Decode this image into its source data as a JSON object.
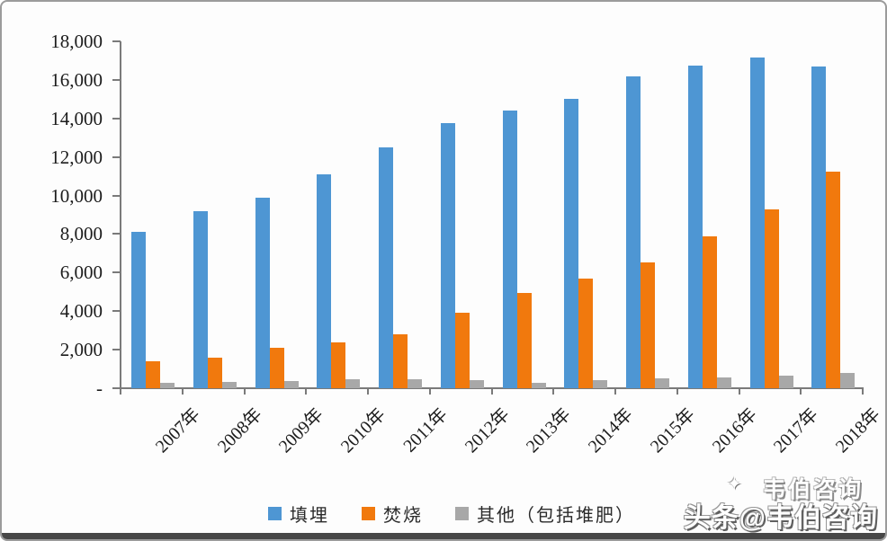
{
  "watermark": {
    "overlay_text": "韦伯咨询",
    "main_text": "头条@韦伯咨询"
  },
  "chart_data": {
    "type": "bar",
    "title": "",
    "xlabel": "",
    "ylabel": "",
    "categories": [
      "2007年",
      "2008年",
      "2009年",
      "2010年",
      "2011年",
      "2012年",
      "2013年",
      "2014年",
      "2015年",
      "2016年",
      "2017年",
      "2018年"
    ],
    "series": [
      {
        "name": "填埋",
        "color": "#4E96D3",
        "values": [
          8100,
          9200,
          9900,
          11100,
          12500,
          13750,
          14400,
          15000,
          16200,
          16750,
          17150,
          16700
        ]
      },
      {
        "name": "焚烧",
        "color": "#F1790D",
        "values": [
          1400,
          1600,
          2100,
          2400,
          2800,
          3900,
          4950,
          5700,
          6550,
          7900,
          9300,
          11250
        ]
      },
      {
        "name": "其他（包括堆肥）",
        "color": "#A8A8A8",
        "values": [
          300,
          320,
          350,
          450,
          450,
          400,
          300,
          430,
          500,
          560,
          660,
          800
        ]
      }
    ],
    "ylim": [
      0,
      18000
    ],
    "y_tick_step": 2000,
    "y_tick_labels": [
      "-",
      "2,000",
      "4,000",
      "6,000",
      "8,000",
      "10,000",
      "12,000",
      "14,000",
      "16,000",
      "18,000"
    ],
    "grid": false,
    "legend_position": "bottom"
  }
}
